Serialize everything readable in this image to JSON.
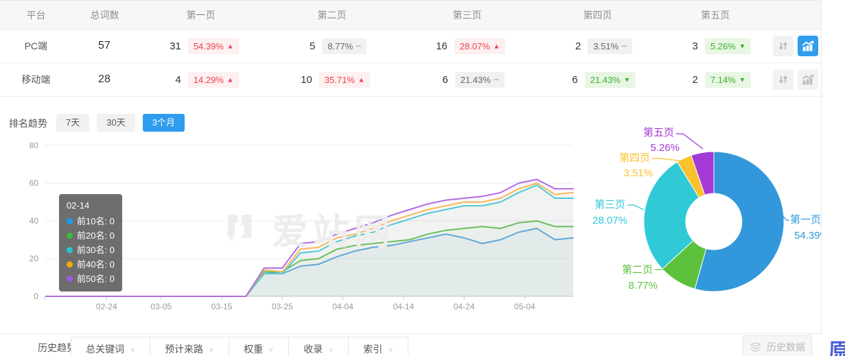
{
  "table": {
    "headers": {
      "platform": "平台",
      "total": "总词数",
      "pages": [
        "第一页",
        "第二页",
        "第三页",
        "第四页",
        "第五页"
      ]
    },
    "rows": [
      {
        "platform": "PC端",
        "total": "57",
        "chart_active": true,
        "pages": [
          {
            "count": "31",
            "pct": "54.39%",
            "trend": "up"
          },
          {
            "count": "5",
            "pct": "8.77%",
            "trend": "flat"
          },
          {
            "count": "16",
            "pct": "28.07%",
            "trend": "up"
          },
          {
            "count": "2",
            "pct": "3.51%",
            "trend": "flat"
          },
          {
            "count": "3",
            "pct": "5.26%",
            "trend": "down"
          }
        ]
      },
      {
        "platform": "移动端",
        "total": "28",
        "chart_active": false,
        "pages": [
          {
            "count": "4",
            "pct": "14.29%",
            "trend": "up"
          },
          {
            "count": "10",
            "pct": "35.71%",
            "trend": "up"
          },
          {
            "count": "6",
            "pct": "21.43%",
            "trend": "flat"
          },
          {
            "count": "6",
            "pct": "21.43%",
            "trend": "down"
          },
          {
            "count": "2",
            "pct": "7.14%",
            "trend": "down"
          }
        ]
      }
    ]
  },
  "glyphs": {
    "up": "▲",
    "flat": "−",
    "down": "▼",
    "chevron": "∨"
  },
  "trend": {
    "label": "排名趋势",
    "tabs": [
      {
        "label": "7天",
        "active": false
      },
      {
        "label": "30天",
        "active": false
      },
      {
        "label": "3个月",
        "active": true
      }
    ]
  },
  "tooltip": {
    "date": "02-14",
    "items": [
      {
        "label": "前10名",
        "value": "0",
        "color": "#1e9ce8"
      },
      {
        "label": "前20名",
        "value": "0",
        "color": "#3abb33"
      },
      {
        "label": "前30名",
        "value": "0",
        "color": "#1fc8d6"
      },
      {
        "label": "前40名",
        "value": "0",
        "color": "#f0ab00"
      },
      {
        "label": "前50名",
        "value": "0",
        "color": "#9b59e8"
      }
    ]
  },
  "watermark": {
    "text": "爱站网"
  },
  "bottom": {
    "history_trend": "历史趋势",
    "dropdowns": [
      "总关键词",
      "预计来路",
      "权重",
      "收录",
      "索引"
    ],
    "history_data": "历史数据",
    "corner_glyph": "原"
  },
  "chart_data": [
    {
      "type": "line",
      "title": "排名趋势(3个月)",
      "x": [
        "02-14",
        "02-17",
        "02-20",
        "02-23",
        "02-26",
        "03-01",
        "03-04",
        "03-07",
        "03-10",
        "03-13",
        "03-16",
        "03-19",
        "03-22",
        "03-25",
        "03-28",
        "03-31",
        "04-03",
        "04-06",
        "04-09",
        "04-12",
        "04-15",
        "04-18",
        "04-21",
        "04-24",
        "04-27",
        "04-30",
        "05-03",
        "05-06",
        "05-09",
        "05-12"
      ],
      "x_axis_labels": [
        "02-24",
        "03-05",
        "03-15",
        "03-25",
        "04-04",
        "04-14",
        "04-24",
        "05-04"
      ],
      "ylim": [
        0,
        80
      ],
      "yticks": [
        0,
        20,
        40,
        60,
        80
      ],
      "grid": "horizontal",
      "series": [
        {
          "name": "前10名",
          "color": "#54a8e8",
          "values": [
            0,
            0,
            0,
            0,
            0,
            0,
            0,
            0,
            0,
            0,
            0,
            0,
            13,
            12,
            16,
            17,
            21,
            24,
            26,
            27,
            29,
            31,
            33,
            31,
            28,
            30,
            34,
            36,
            30,
            31
          ]
        },
        {
          "name": "前20名",
          "color": "#62c452",
          "values": [
            0,
            0,
            0,
            0,
            0,
            0,
            0,
            0,
            0,
            0,
            0,
            0,
            13,
            13,
            19,
            20,
            25,
            27,
            28,
            29,
            30,
            33,
            35,
            36,
            37,
            36,
            39,
            40,
            37,
            37
          ]
        },
        {
          "name": "前30名",
          "color": "#41d0da",
          "values": [
            0,
            0,
            0,
            0,
            0,
            0,
            0,
            0,
            0,
            0,
            0,
            0,
            12,
            12,
            23,
            24,
            29,
            32,
            34,
            38,
            41,
            44,
            46,
            48,
            48,
            50,
            55,
            59,
            52,
            52
          ]
        },
        {
          "name": "前40名",
          "color": "#f7c14e",
          "values": [
            0,
            0,
            0,
            0,
            0,
            0,
            0,
            0,
            0,
            0,
            0,
            0,
            14,
            13,
            25,
            26,
            31,
            33,
            36,
            40,
            43,
            46,
            48,
            50,
            50,
            52,
            57,
            60,
            54,
            55
          ]
        },
        {
          "name": "前50名",
          "color": "#b16ae0",
          "values": [
            0,
            0,
            0,
            0,
            0,
            0,
            0,
            0,
            0,
            0,
            0,
            0,
            15,
            15,
            28,
            29,
            33,
            36,
            39,
            43,
            46,
            49,
            51,
            52,
            53,
            55,
            60,
            62,
            57,
            57
          ]
        }
      ]
    },
    {
      "type": "pie",
      "donut": true,
      "legend_position": "outside-labels",
      "series": [
        {
          "name": "第一页",
          "value": 54.39,
          "pct_label": "54.39%",
          "color": "#3398db"
        },
        {
          "name": "第二页",
          "value": 8.77,
          "pct_label": "8.77%",
          "color": "#5cc23d"
        },
        {
          "name": "第三页",
          "value": 28.07,
          "pct_label": "28.07%",
          "color": "#30c9d6"
        },
        {
          "name": "第四页",
          "value": 3.51,
          "pct_label": "3.51%",
          "color": "#fbc12d"
        },
        {
          "name": "第五页",
          "value": 5.26,
          "pct_label": "5.26%",
          "color": "#a43ad6"
        }
      ]
    }
  ]
}
